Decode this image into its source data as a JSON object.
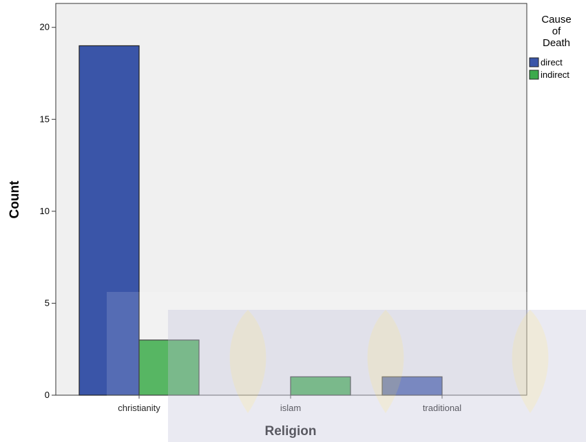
{
  "chart_data": {
    "type": "bar",
    "title": "",
    "xlabel": "Religion",
    "ylabel": "Count",
    "categories": [
      "christianity",
      "islam",
      "traditional"
    ],
    "series": [
      {
        "name": "direct",
        "color": "#3a55a8",
        "values": [
          19,
          0,
          1
        ]
      },
      {
        "name": "indirect",
        "color": "#3caa4b",
        "values": [
          3,
          1,
          0
        ]
      }
    ],
    "ylim": [
      0,
      21.3
    ],
    "yticks": [
      0,
      5,
      10,
      15,
      20
    ],
    "grid": false,
    "legend": {
      "title_lines": [
        "Cause",
        "of",
        "Death"
      ],
      "placement": "right"
    },
    "plot_background": "#f0f0f0"
  }
}
